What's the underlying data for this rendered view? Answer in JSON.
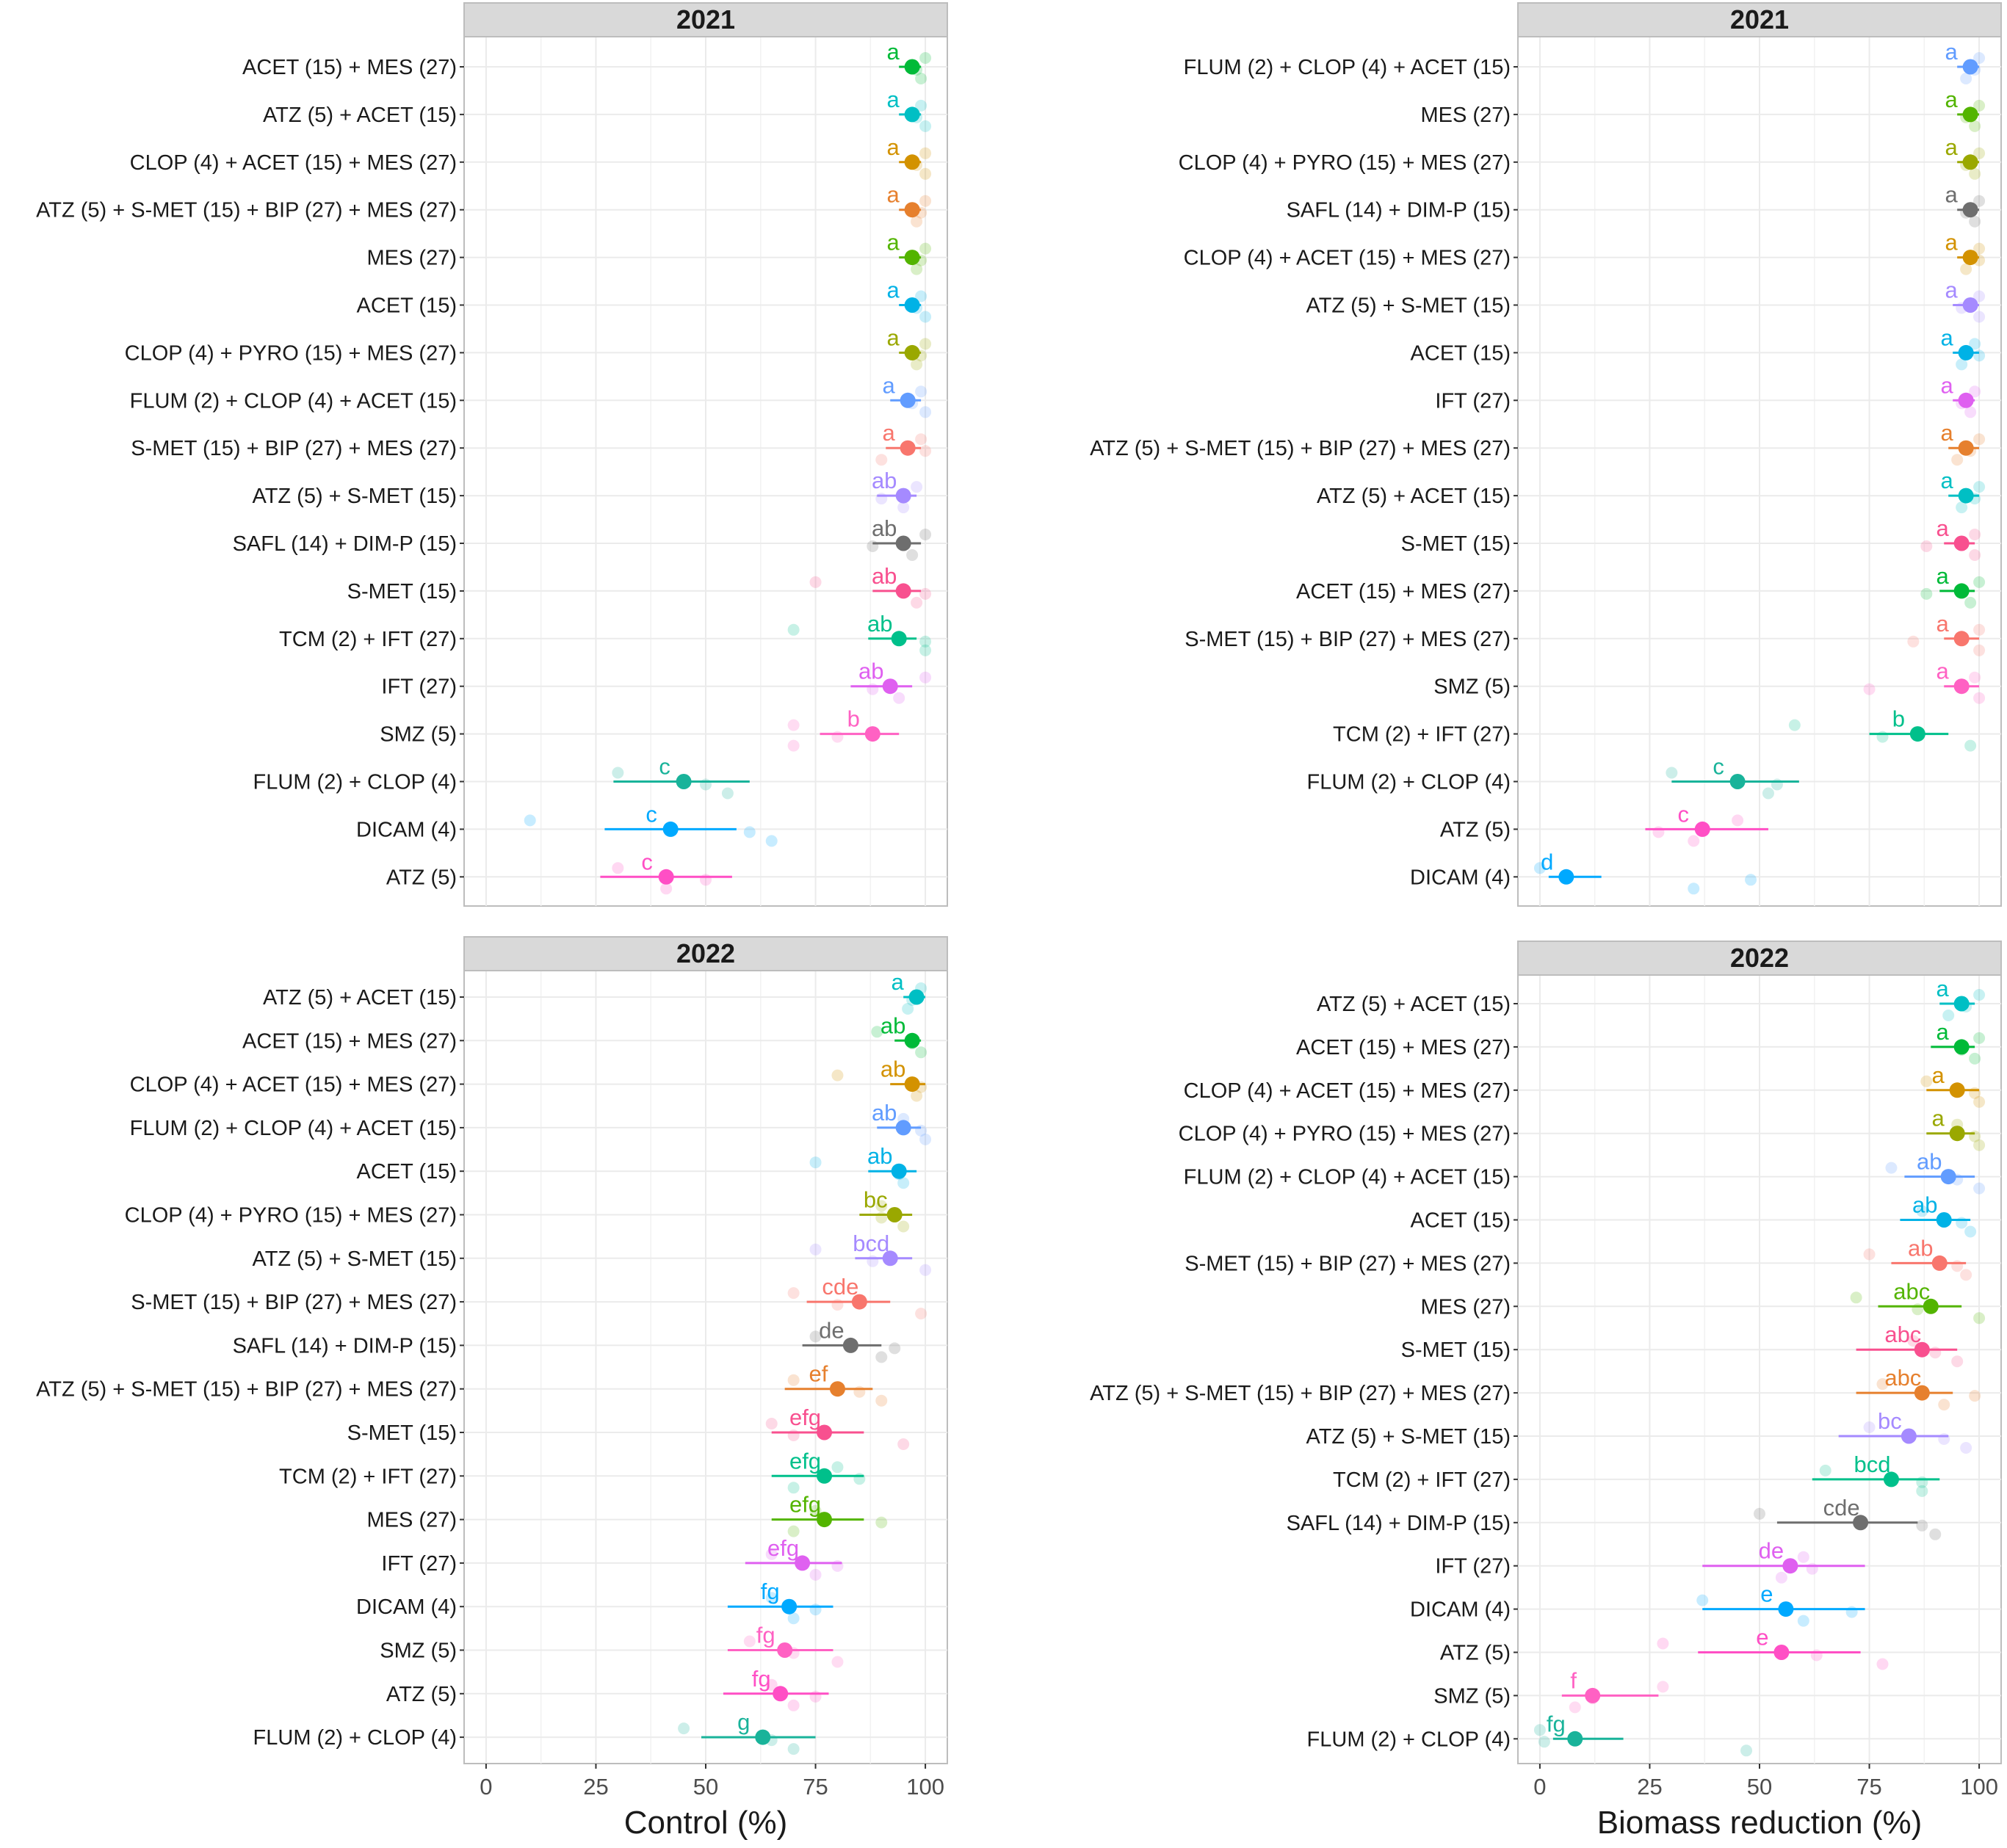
{
  "chart_data": [
    {
      "id": "control-2021",
      "type": "dot-and-whisker",
      "panel_title": "2021",
      "xlabel": "",
      "xlim": [
        -5,
        105
      ],
      "xticks": [
        "0",
        "25",
        "50",
        "75",
        "100"
      ],
      "rows": [
        {
          "label": "ACET (15) + MES (27)",
          "mean": 97,
          "lo": 94,
          "hi": 99,
          "letter": "a",
          "color": "#00ba38",
          "reps": [
            100,
            98,
            99
          ]
        },
        {
          "label": "ATZ (5) + ACET (15)",
          "mean": 97,
          "lo": 94,
          "hi": 99,
          "letter": "a",
          "color": "#00bfc4",
          "reps": [
            99,
            98,
            100
          ]
        },
        {
          "label": "CLOP (4) + ACET (15) + MES (27)",
          "mean": 97,
          "lo": 94,
          "hi": 99,
          "letter": "a",
          "color": "#d39200",
          "reps": [
            100,
            98,
            100
          ]
        },
        {
          "label": "ATZ (5) + S-MET (15) + BIP (27) + MES (27)",
          "mean": 97,
          "lo": 94,
          "hi": 99,
          "letter": "a",
          "color": "#e6802e",
          "reps": [
            100,
            99,
            98
          ]
        },
        {
          "label": "MES (27)",
          "mean": 97,
          "lo": 94,
          "hi": 99,
          "letter": "a",
          "color": "#53b400",
          "reps": [
            100,
            99,
            98
          ]
        },
        {
          "label": "ACET (15)",
          "mean": 97,
          "lo": 94,
          "hi": 99,
          "letter": "a",
          "color": "#00b2e6",
          "reps": [
            99,
            98,
            100
          ]
        },
        {
          "label": "CLOP (4) + PYRO (15) + MES (27)",
          "mean": 97,
          "lo": 94,
          "hi": 99,
          "letter": "a",
          "color": "#9aa800",
          "reps": [
            100,
            99,
            98
          ]
        },
        {
          "label": "FLUM (2) + CLOP (4) + ACET (15)",
          "mean": 96,
          "lo": 92,
          "hi": 99,
          "letter": "a",
          "color": "#619cff",
          "reps": [
            99,
            97,
            100
          ]
        },
        {
          "label": "S-MET (15) + BIP (27) + MES (27)",
          "mean": 96,
          "lo": 91,
          "hi": 99,
          "letter": "a",
          "color": "#f8766d",
          "reps": [
            99,
            100,
            90
          ]
        },
        {
          "label": "ATZ (5) + S-MET (15)",
          "mean": 95,
          "lo": 89,
          "hi": 98,
          "letter": "ab",
          "color": "#a58aff",
          "reps": [
            98,
            90,
            95
          ]
        },
        {
          "label": "SAFL (14) + DIM-P (15)",
          "mean": 95,
          "lo": 88,
          "hi": 99,
          "letter": "ab",
          "color": "#6e6e6e",
          "reps": [
            100,
            88,
            97
          ]
        },
        {
          "label": "S-MET (15)",
          "mean": 95,
          "lo": 88,
          "hi": 99,
          "letter": "ab",
          "color": "#f8508f",
          "reps": [
            75,
            100,
            98
          ]
        },
        {
          "label": "TCM (2) + IFT (27)",
          "mean": 94,
          "lo": 87,
          "hi": 98,
          "letter": "ab",
          "color": "#00c08b",
          "reps": [
            70,
            100,
            100
          ]
        },
        {
          "label": "IFT (27)",
          "mean": 92,
          "lo": 83,
          "hi": 97,
          "letter": "ab",
          "color": "#df60f0",
          "reps": [
            100,
            88,
            94
          ]
        },
        {
          "label": "SMZ (5)",
          "mean": 88,
          "lo": 76,
          "hi": 94,
          "letter": "b",
          "color": "#ff61c3",
          "reps": [
            70,
            80,
            70
          ]
        },
        {
          "label": "FLUM (2) + CLOP (4)",
          "mean": 45,
          "lo": 29,
          "hi": 60,
          "letter": "c",
          "color": "#19b39a",
          "reps": [
            30,
            50,
            55
          ]
        },
        {
          "label": "DICAM (4)",
          "mean": 42,
          "lo": 27,
          "hi": 57,
          "letter": "c",
          "color": "#00a9ff",
          "reps": [
            10,
            60,
            65
          ]
        },
        {
          "label": "ATZ (5)",
          "mean": 41,
          "lo": 26,
          "hi": 56,
          "letter": "c",
          "color": "#ff4fc5",
          "reps": [
            30,
            50,
            41
          ]
        }
      ]
    },
    {
      "id": "biomass-2021",
      "type": "dot-and-whisker",
      "panel_title": "2021",
      "xlabel": "",
      "xlim": [
        -5,
        105
      ],
      "xticks": [
        "0",
        "25",
        "50",
        "75",
        "100"
      ],
      "rows": [
        {
          "label": "FLUM (2) + CLOP (4) + ACET (15)",
          "mean": 98,
          "lo": 95,
          "hi": 100,
          "letter": "a",
          "color": "#619cff",
          "reps": [
            100,
            99,
            97
          ]
        },
        {
          "label": "MES (27)",
          "mean": 98,
          "lo": 95,
          "hi": 100,
          "letter": "a",
          "color": "#53b400",
          "reps": [
            100,
            97,
            99
          ]
        },
        {
          "label": "CLOP (4) + PYRO (15) + MES (27)",
          "mean": 98,
          "lo": 95,
          "hi": 100,
          "letter": "a",
          "color": "#9aa800",
          "reps": [
            100,
            97,
            99
          ]
        },
        {
          "label": "SAFL (14) + DIM-P (15)",
          "mean": 98,
          "lo": 95,
          "hi": 100,
          "letter": "a",
          "color": "#6e6e6e",
          "reps": [
            100,
            97,
            99
          ]
        },
        {
          "label": "CLOP (4) + ACET (15) + MES (27)",
          "mean": 98,
          "lo": 95,
          "hi": 100,
          "letter": "a",
          "color": "#d39200",
          "reps": [
            100,
            100,
            97
          ]
        },
        {
          "label": "ATZ (5) + S-MET (15)",
          "mean": 98,
          "lo": 94,
          "hi": 100,
          "letter": "a",
          "color": "#a58aff",
          "reps": [
            100,
            96,
            100
          ]
        },
        {
          "label": "ACET (15)",
          "mean": 97,
          "lo": 94,
          "hi": 100,
          "letter": "a",
          "color": "#00b2e6",
          "reps": [
            99,
            100,
            96
          ]
        },
        {
          "label": "IFT (27)",
          "mean": 97,
          "lo": 94,
          "hi": 99,
          "letter": "a",
          "color": "#df60f0",
          "reps": [
            99,
            96,
            98
          ]
        },
        {
          "label": "ATZ (5) + S-MET (15) + BIP (27) + MES (27)",
          "mean": 97,
          "lo": 93,
          "hi": 100,
          "letter": "a",
          "color": "#e6802e",
          "reps": [
            100,
            98,
            95
          ]
        },
        {
          "label": "ATZ (5) + ACET (15)",
          "mean": 97,
          "lo": 93,
          "hi": 100,
          "letter": "a",
          "color": "#00bfc4",
          "reps": [
            100,
            99,
            96
          ]
        },
        {
          "label": "S-MET (15)",
          "mean": 96,
          "lo": 92,
          "hi": 99,
          "letter": "a",
          "color": "#f8508f",
          "reps": [
            99,
            88,
            99
          ]
        },
        {
          "label": "ACET (15) + MES (27)",
          "mean": 96,
          "lo": 91,
          "hi": 99,
          "letter": "a",
          "color": "#00ba38",
          "reps": [
            100,
            88,
            98
          ]
        },
        {
          "label": "S-MET (15) + BIP (27) + MES (27)",
          "mean": 96,
          "lo": 92,
          "hi": 100,
          "letter": "a",
          "color": "#f8766d",
          "reps": [
            100,
            85,
            100
          ]
        },
        {
          "label": "SMZ (5)",
          "mean": 96,
          "lo": 92,
          "hi": 100,
          "letter": "a",
          "color": "#ff61c3",
          "reps": [
            99,
            75,
            100
          ]
        },
        {
          "label": "TCM (2) + IFT (27)",
          "mean": 86,
          "lo": 75,
          "hi": 93,
          "letter": "b",
          "color": "#00c08b",
          "reps": [
            58,
            78,
            98
          ]
        },
        {
          "label": "FLUM (2) + CLOP (4)",
          "mean": 45,
          "lo": 30,
          "hi": 59,
          "letter": "c",
          "color": "#19b39a",
          "reps": [
            30,
            54,
            52
          ]
        },
        {
          "label": "ATZ (5)",
          "mean": 37,
          "lo": 24,
          "hi": 52,
          "letter": "c",
          "color": "#ff4fc5",
          "reps": [
            45,
            27,
            35
          ]
        },
        {
          "label": "DICAM (4)",
          "mean": 6,
          "lo": 2,
          "hi": 14,
          "letter": "d",
          "color": "#00a9ff",
          "reps": [
            0,
            48,
            35
          ]
        }
      ]
    },
    {
      "id": "control-2022",
      "type": "dot-and-whisker",
      "panel_title": "2022",
      "xlabel": "Control (%)",
      "xlim": [
        -5,
        105
      ],
      "xticks": [
        "0",
        "25",
        "50",
        "75",
        "100"
      ],
      "rows": [
        {
          "label": "ATZ (5) + ACET (15)",
          "mean": 98,
          "lo": 95,
          "hi": 100,
          "letter": "a",
          "color": "#00bfc4",
          "reps": [
            99,
            97,
            96
          ]
        },
        {
          "label": "ACET (15) + MES (27)",
          "mean": 97,
          "lo": 93,
          "hi": 99,
          "letter": "ab",
          "color": "#00ba38",
          "reps": [
            89,
            97,
            99
          ]
        },
        {
          "label": "CLOP (4) + ACET (15) + MES (27)",
          "mean": 97,
          "lo": 92,
          "hi": 100,
          "letter": "ab",
          "color": "#d39200",
          "reps": [
            80,
            99,
            98
          ]
        },
        {
          "label": "FLUM (2) + CLOP (4) + ACET (15)",
          "mean": 95,
          "lo": 89,
          "hi": 99,
          "letter": "ab",
          "color": "#619cff",
          "reps": [
            95,
            99,
            100
          ]
        },
        {
          "label": "ACET (15)",
          "mean": 94,
          "lo": 87,
          "hi": 98,
          "letter": "ab",
          "color": "#00b2e6",
          "reps": [
            75,
            94,
            95
          ]
        },
        {
          "label": "CLOP (4) + PYRO (15) + MES (27)",
          "mean": 93,
          "lo": 85,
          "hi": 97,
          "letter": "bc",
          "color": "#9aa800",
          "reps": [
            90,
            90,
            95
          ]
        },
        {
          "label": "ATZ (5) + S-MET (15)",
          "mean": 92,
          "lo": 84,
          "hi": 97,
          "letter": "bcd",
          "color": "#a58aff",
          "reps": [
            75,
            88,
            100
          ]
        },
        {
          "label": "S-MET (15) + BIP (27) + MES (27)",
          "mean": 85,
          "lo": 73,
          "hi": 92,
          "letter": "cde",
          "color": "#f8766d",
          "reps": [
            70,
            80,
            99
          ]
        },
        {
          "label": "SAFL (14) + DIM-P (15)",
          "mean": 83,
          "lo": 72,
          "hi": 90,
          "letter": "de",
          "color": "#6e6e6e",
          "reps": [
            75,
            93,
            90
          ]
        },
        {
          "label": "ATZ (5) + S-MET (15) + BIP (27) + MES (27)",
          "mean": 80,
          "lo": 68,
          "hi": 88,
          "letter": "ef",
          "color": "#e6802e",
          "reps": [
            70,
            85,
            90
          ]
        },
        {
          "label": "S-MET (15)",
          "mean": 77,
          "lo": 65,
          "hi": 86,
          "letter": "efg",
          "color": "#f8508f",
          "reps": [
            65,
            70,
            95
          ]
        },
        {
          "label": "TCM (2) + IFT (27)",
          "mean": 77,
          "lo": 65,
          "hi": 86,
          "letter": "efg",
          "color": "#00c08b",
          "reps": [
            80,
            85,
            70
          ]
        },
        {
          "label": "MES (27)",
          "mean": 77,
          "lo": 65,
          "hi": 86,
          "letter": "efg",
          "color": "#53b400",
          "reps": [
            75,
            90,
            70
          ]
        },
        {
          "label": "IFT (27)",
          "mean": 72,
          "lo": 59,
          "hi": 81,
          "letter": "efg",
          "color": "#df60f0",
          "reps": [
            65,
            80,
            75
          ]
        },
        {
          "label": "DICAM (4)",
          "mean": 69,
          "lo": 55,
          "hi": 79,
          "letter": "fg",
          "color": "#00a9ff",
          "reps": [
            65,
            75,
            70
          ]
        },
        {
          "label": "SMZ (5)",
          "mean": 68,
          "lo": 55,
          "hi": 79,
          "letter": "fg",
          "color": "#ff61c3",
          "reps": [
            60,
            70,
            80
          ]
        },
        {
          "label": "ATZ (5)",
          "mean": 67,
          "lo": 54,
          "hi": 78,
          "letter": "fg",
          "color": "#ff4fc5",
          "reps": [
            65,
            75,
            70
          ]
        },
        {
          "label": "FLUM (2) + CLOP (4)",
          "mean": 63,
          "lo": 49,
          "hi": 75,
          "letter": "g",
          "color": "#19b39a",
          "reps": [
            45,
            65,
            70
          ]
        }
      ]
    },
    {
      "id": "biomass-2022",
      "type": "dot-and-whisker",
      "panel_title": "2022",
      "xlabel": "Biomass reduction (%)",
      "xlim": [
        -5,
        105
      ],
      "xticks": [
        "0",
        "25",
        "50",
        "75",
        "100"
      ],
      "rows": [
        {
          "label": "ATZ (5) + ACET (15)",
          "mean": 96,
          "lo": 91,
          "hi": 99,
          "letter": "a",
          "color": "#00bfc4",
          "reps": [
            100,
            97,
            93
          ]
        },
        {
          "label": "ACET (15) + MES (27)",
          "mean": 96,
          "lo": 89,
          "hi": 99,
          "letter": "a",
          "color": "#00ba38",
          "reps": [
            100,
            96,
            99
          ]
        },
        {
          "label": "CLOP (4) + ACET (15) + MES (27)",
          "mean": 95,
          "lo": 88,
          "hi": 100,
          "letter": "a",
          "color": "#d39200",
          "reps": [
            88,
            99,
            100
          ]
        },
        {
          "label": "CLOP (4) + PYRO (15) + MES (27)",
          "mean": 95,
          "lo": 88,
          "hi": 99,
          "letter": "a",
          "color": "#9aa800",
          "reps": [
            95,
            99,
            100
          ]
        },
        {
          "label": "FLUM (2) + CLOP (4) + ACET (15)",
          "mean": 93,
          "lo": 83,
          "hi": 99,
          "letter": "ab",
          "color": "#619cff",
          "reps": [
            80,
            95,
            100
          ]
        },
        {
          "label": "ACET (15)",
          "mean": 92,
          "lo": 82,
          "hi": 98,
          "letter": "ab",
          "color": "#00b2e6",
          "reps": [
            87,
            96,
            98
          ]
        },
        {
          "label": "S-MET (15) + BIP (27) + MES (27)",
          "mean": 91,
          "lo": 80,
          "hi": 97,
          "letter": "ab",
          "color": "#f8766d",
          "reps": [
            75,
            95,
            97
          ]
        },
        {
          "label": "MES (27)",
          "mean": 89,
          "lo": 77,
          "hi": 96,
          "letter": "abc",
          "color": "#53b400",
          "reps": [
            72,
            86,
            100
          ]
        },
        {
          "label": "S-MET (15)",
          "mean": 87,
          "lo": 72,
          "hi": 95,
          "letter": "abc",
          "color": "#f8508f",
          "reps": [
            85,
            90,
            95
          ]
        },
        {
          "label": "ATZ (5) + S-MET (15) + BIP (27) + MES (27)",
          "mean": 87,
          "lo": 72,
          "hi": 94,
          "letter": "abc",
          "color": "#e6802e",
          "reps": [
            78,
            99,
            92
          ]
        },
        {
          "label": "ATZ (5) + S-MET (15)",
          "mean": 84,
          "lo": 68,
          "hi": 93,
          "letter": "bc",
          "color": "#a58aff",
          "reps": [
            75,
            92,
            97
          ]
        },
        {
          "label": "TCM (2) + IFT (27)",
          "mean": 80,
          "lo": 62,
          "hi": 91,
          "letter": "bcd",
          "color": "#00c08b",
          "reps": [
            65,
            87,
            87
          ]
        },
        {
          "label": "SAFL (14) + DIM-P (15)",
          "mean": 73,
          "lo": 54,
          "hi": 86,
          "letter": "cde",
          "color": "#6e6e6e",
          "reps": [
            50,
            87,
            90
          ]
        },
        {
          "label": "IFT (27)",
          "mean": 57,
          "lo": 37,
          "hi": 74,
          "letter": "de",
          "color": "#df60f0",
          "reps": [
            60,
            62,
            55
          ]
        },
        {
          "label": "DICAM (4)",
          "mean": 56,
          "lo": 37,
          "hi": 74,
          "letter": "e",
          "color": "#00a9ff",
          "reps": [
            37,
            71,
            60
          ]
        },
        {
          "label": "ATZ (5)",
          "mean": 55,
          "lo": 36,
          "hi": 73,
          "letter": "e",
          "color": "#ff4fc5",
          "reps": [
            28,
            63,
            78
          ]
        },
        {
          "label": "SMZ (5)",
          "mean": 12,
          "lo": 5,
          "hi": 27,
          "letter": "f",
          "color": "#ff61c3",
          "reps": [
            28,
            12,
            8
          ]
        },
        {
          "label": "FLUM (2) + CLOP (4)",
          "mean": 8,
          "lo": 3,
          "hi": 19,
          "letter": "fg",
          "color": "#19b39a",
          "reps": [
            0,
            1,
            47
          ]
        }
      ]
    }
  ]
}
